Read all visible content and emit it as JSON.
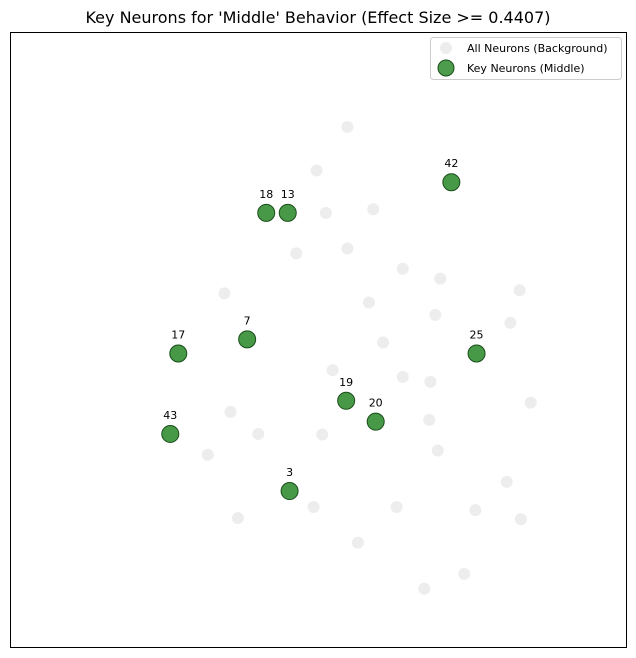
{
  "chart_data": {
    "type": "scatter",
    "title": "Key Neurons for 'Middle' Behavior (Effect Size >= 0.4407)",
    "xlabel": "",
    "ylabel": "",
    "axis_ticks": "none",
    "grid": false,
    "legend_position": "top-right",
    "xlim": [
      0,
      1
    ],
    "ylim": [
      0,
      1
    ],
    "series": [
      {
        "name": "All Neurons (Background)",
        "color": "#d3d3d3",
        "points": [
          {
            "x": 0.547,
            "y": 0.847
          },
          {
            "x": 0.497,
            "y": 0.776
          },
          {
            "x": 0.512,
            "y": 0.707
          },
          {
            "x": 0.589,
            "y": 0.713
          },
          {
            "x": 0.464,
            "y": 0.641
          },
          {
            "x": 0.547,
            "y": 0.649
          },
          {
            "x": 0.637,
            "y": 0.616
          },
          {
            "x": 0.698,
            "y": 0.6
          },
          {
            "x": 0.347,
            "y": 0.576
          },
          {
            "x": 0.582,
            "y": 0.561
          },
          {
            "x": 0.69,
            "y": 0.541
          },
          {
            "x": 0.827,
            "y": 0.581
          },
          {
            "x": 0.812,
            "y": 0.528
          },
          {
            "x": 0.605,
            "y": 0.496
          },
          {
            "x": 0.523,
            "y": 0.451
          },
          {
            "x": 0.637,
            "y": 0.44
          },
          {
            "x": 0.682,
            "y": 0.432
          },
          {
            "x": 0.845,
            "y": 0.398
          },
          {
            "x": 0.357,
            "y": 0.383
          },
          {
            "x": 0.402,
            "y": 0.347
          },
          {
            "x": 0.506,
            "y": 0.346
          },
          {
            "x": 0.68,
            "y": 0.37
          },
          {
            "x": 0.694,
            "y": 0.32
          },
          {
            "x": 0.32,
            "y": 0.313
          },
          {
            "x": 0.806,
            "y": 0.269
          },
          {
            "x": 0.492,
            "y": 0.228
          },
          {
            "x": 0.627,
            "y": 0.228
          },
          {
            "x": 0.755,
            "y": 0.223
          },
          {
            "x": 0.829,
            "y": 0.208
          },
          {
            "x": 0.369,
            "y": 0.21
          },
          {
            "x": 0.564,
            "y": 0.17
          },
          {
            "x": 0.737,
            "y": 0.119
          },
          {
            "x": 0.672,
            "y": 0.095
          }
        ]
      },
      {
        "name": "Key Neurons (Middle)",
        "color": "#2e8b2e",
        "points": [
          {
            "x": 0.716,
            "y": 0.757,
            "label": "42"
          },
          {
            "x": 0.415,
            "y": 0.707,
            "label": "18"
          },
          {
            "x": 0.45,
            "y": 0.707,
            "label": "13"
          },
          {
            "x": 0.384,
            "y": 0.501,
            "label": "7"
          },
          {
            "x": 0.272,
            "y": 0.478,
            "label": "17"
          },
          {
            "x": 0.757,
            "y": 0.478,
            "label": "25"
          },
          {
            "x": 0.545,
            "y": 0.401,
            "label": "19"
          },
          {
            "x": 0.593,
            "y": 0.367,
            "label": "20"
          },
          {
            "x": 0.259,
            "y": 0.347,
            "label": "43"
          },
          {
            "x": 0.453,
            "y": 0.254,
            "label": "3"
          }
        ]
      }
    ]
  }
}
